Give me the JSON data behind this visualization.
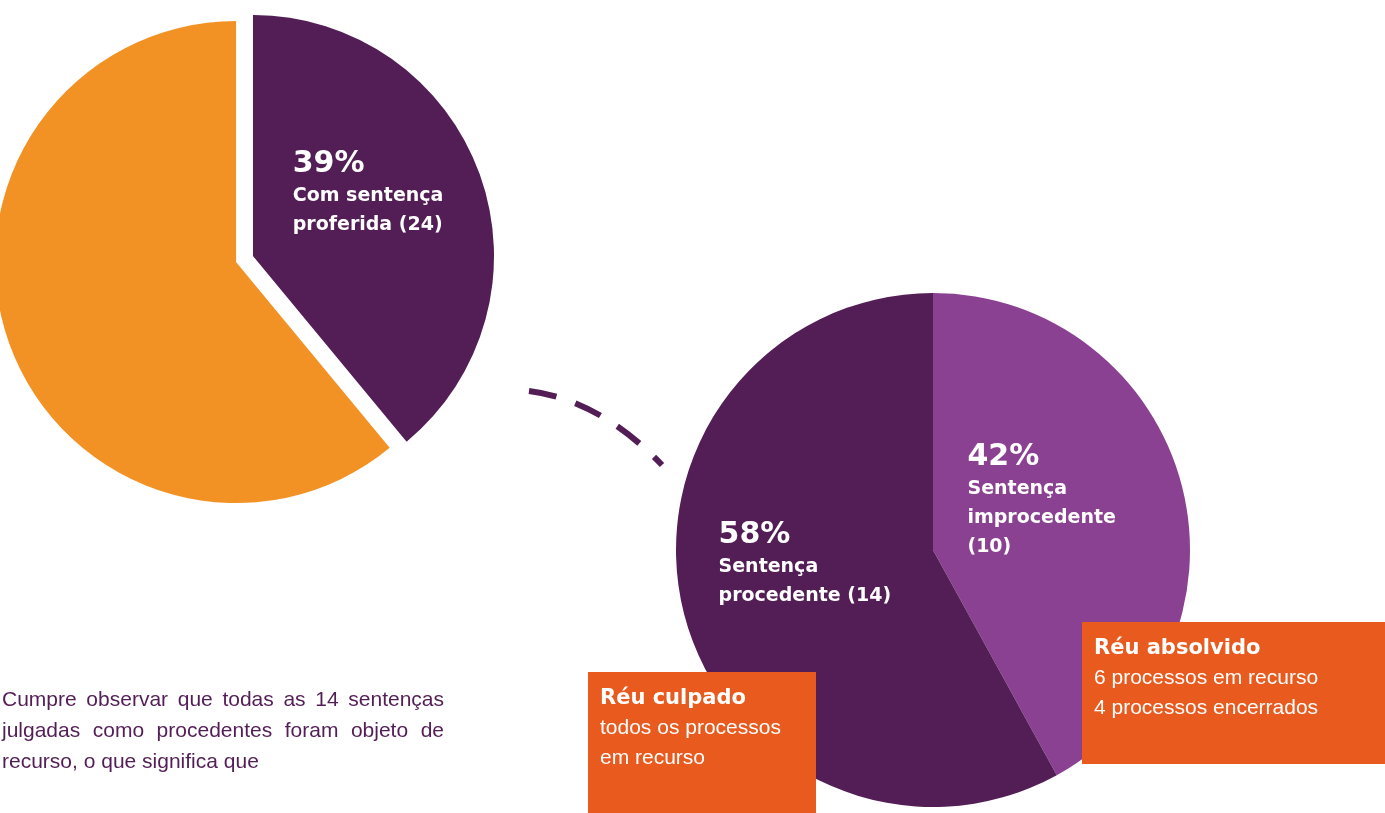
{
  "chart_data": [
    {
      "type": "pie",
      "categories": [
        "Com sentença proferida (24)",
        null
      ],
      "values": [
        39,
        61
      ],
      "value_labels": [
        "39%",
        null
      ],
      "colors": [
        "#521e55",
        "#f39224"
      ],
      "legend": false,
      "annotations": [
        "Cumpre observar que todas as 14 sentenças julgadas como procedentes foram objeto de recurso, o que significa que"
      ]
    },
    {
      "type": "pie",
      "categories": [
        "Sentença improcedente (10)",
        "Sentença procedente (14)"
      ],
      "values": [
        42,
        58
      ],
      "value_labels": [
        "42%",
        "58%"
      ],
      "colors": [
        "#8b4191",
        "#521e55"
      ],
      "legend": false,
      "annotations": [
        "Réu culpado",
        "todos os processos em recurso",
        "Réu absolvido",
        "6 processos em recurso",
        "4 processos encerrados"
      ]
    }
  ]
}
